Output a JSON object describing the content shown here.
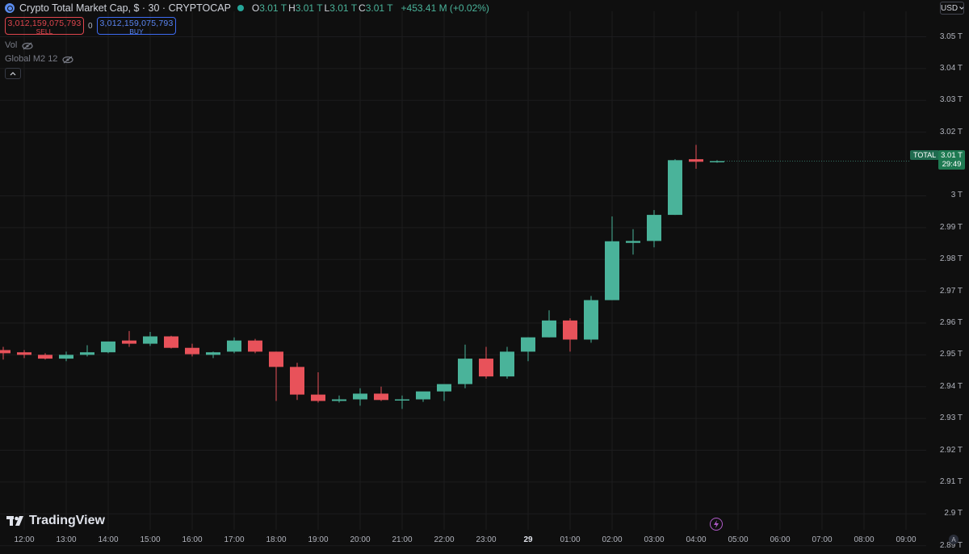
{
  "header": {
    "title": "Crypto Total Market Cap, $ · 30 · CRYPTOCAP",
    "ohlc": [
      {
        "key": "O",
        "value": "3.01 T"
      },
      {
        "key": "H",
        "value": "3.01 T"
      },
      {
        "key": "L",
        "value": "3.01 T"
      },
      {
        "key": "C",
        "value": "3.01 T"
      }
    ],
    "change": "+453.41 M (+0.02%)"
  },
  "trade": {
    "sell_price": "3,012,159,075,793",
    "sell_label": "SELL",
    "buy_price": "3,012,159,075,793",
    "buy_label": "BUY",
    "spread": "0"
  },
  "indicators": {
    "vol_label": "Vol",
    "m2_label": "Global M2 12"
  },
  "currency": "USD",
  "logo_text": "TradingView",
  "price_tag": {
    "symbol": "TOTAL",
    "price": "3.01 T",
    "countdown": "29:49"
  },
  "auto_label": "A",
  "colors": {
    "up": "#4ab39a",
    "down": "#e8525a",
    "background": "#0f0f0f"
  },
  "chart_data": {
    "type": "candlestick",
    "ylim": [
      2.895,
      3.058
    ],
    "y_ticks": [
      {
        "value": 3.05,
        "label": "3.05 T"
      },
      {
        "value": 3.04,
        "label": "3.04 T"
      },
      {
        "value": 3.03,
        "label": "3.03 T"
      },
      {
        "value": 3.02,
        "label": "3.02 T"
      },
      {
        "value": 3.0,
        "label": "3 T"
      },
      {
        "value": 2.99,
        "label": "2.99 T"
      },
      {
        "value": 2.98,
        "label": "2.98 T"
      },
      {
        "value": 2.97,
        "label": "2.97 T"
      },
      {
        "value": 2.96,
        "label": "2.96 T"
      },
      {
        "value": 2.95,
        "label": "2.95 T"
      },
      {
        "value": 2.94,
        "label": "2.94 T"
      },
      {
        "value": 2.93,
        "label": "2.93 T"
      },
      {
        "value": 2.92,
        "label": "2.92 T"
      },
      {
        "value": 2.91,
        "label": "2.91 T"
      },
      {
        "value": 2.9,
        "label": "2.9 T"
      },
      {
        "value": 2.89,
        "label": "2.89 T"
      }
    ],
    "x_ticks": [
      {
        "time": "12:00",
        "label": "12:00",
        "bold": false
      },
      {
        "time": "13:00",
        "label": "13:00",
        "bold": false
      },
      {
        "time": "14:00",
        "label": "14:00",
        "bold": false
      },
      {
        "time": "15:00",
        "label": "15:00",
        "bold": false
      },
      {
        "time": "16:00",
        "label": "16:00",
        "bold": false
      },
      {
        "time": "17:00",
        "label": "17:00",
        "bold": false
      },
      {
        "time": "18:00",
        "label": "18:00",
        "bold": false
      },
      {
        "time": "19:00",
        "label": "19:00",
        "bold": false
      },
      {
        "time": "20:00",
        "label": "20:00",
        "bold": false
      },
      {
        "time": "21:00",
        "label": "21:00",
        "bold": false
      },
      {
        "time": "22:00",
        "label": "22:00",
        "bold": false
      },
      {
        "time": "23:00",
        "label": "23:00",
        "bold": false
      },
      {
        "time": "29 00:00",
        "label": "29",
        "bold": true
      },
      {
        "time": "29 01:00",
        "label": "01:00",
        "bold": false
      },
      {
        "time": "29 02:00",
        "label": "02:00",
        "bold": false
      },
      {
        "time": "29 03:00",
        "label": "03:00",
        "bold": false
      },
      {
        "time": "29 04:00",
        "label": "04:00",
        "bold": false
      },
      {
        "time": "29 05:00",
        "label": "05:00",
        "bold": false
      },
      {
        "time": "29 06:00",
        "label": "06:00",
        "bold": false
      },
      {
        "time": "29 07:00",
        "label": "07:00",
        "bold": false
      },
      {
        "time": "29 08:00",
        "label": "08:00",
        "bold": false
      },
      {
        "time": "29 09:00",
        "label": "09:00",
        "bold": false
      }
    ],
    "candles": [
      {
        "time": "11:30",
        "o": 2.9515,
        "h": 2.9525,
        "l": 2.9485,
        "c": 2.9505
      },
      {
        "time": "12:00",
        "o": 2.9508,
        "h": 2.9515,
        "l": 2.949,
        "c": 2.95
      },
      {
        "time": "12:30",
        "o": 2.95,
        "h": 2.9505,
        "l": 2.9485,
        "c": 2.9488
      },
      {
        "time": "13:00",
        "o": 2.9488,
        "h": 2.951,
        "l": 2.948,
        "c": 2.95
      },
      {
        "time": "13:30",
        "o": 2.95,
        "h": 2.953,
        "l": 2.9495,
        "c": 2.9508
      },
      {
        "time": "14:00",
        "o": 2.9508,
        "h": 2.954,
        "l": 2.9505,
        "c": 2.9542
      },
      {
        "time": "14:30",
        "o": 2.9545,
        "h": 2.9575,
        "l": 2.9525,
        "c": 2.9535
      },
      {
        "time": "15:00",
        "o": 2.9535,
        "h": 2.9572,
        "l": 2.9528,
        "c": 2.9558
      },
      {
        "time": "15:30",
        "o": 2.9558,
        "h": 2.956,
        "l": 2.952,
        "c": 2.9522
      },
      {
        "time": "16:00",
        "o": 2.9522,
        "h": 2.9535,
        "l": 2.9495,
        "c": 2.9502
      },
      {
        "time": "16:30",
        "o": 2.95,
        "h": 2.951,
        "l": 2.949,
        "c": 2.9508
      },
      {
        "time": "17:00",
        "o": 2.951,
        "h": 2.9555,
        "l": 2.9505,
        "c": 2.9545
      },
      {
        "time": "17:30",
        "o": 2.9545,
        "h": 2.955,
        "l": 2.9505,
        "c": 2.951
      },
      {
        "time": "18:00",
        "o": 2.951,
        "h": 2.951,
        "l": 2.9355,
        "c": 2.9462
      },
      {
        "time": "18:30",
        "o": 2.9462,
        "h": 2.9475,
        "l": 2.9358,
        "c": 2.9375
      },
      {
        "time": "19:00",
        "o": 2.9375,
        "h": 2.9445,
        "l": 2.935,
        "c": 2.9355
      },
      {
        "time": "19:30",
        "o": 2.9355,
        "h": 2.9372,
        "l": 2.935,
        "c": 2.936
      },
      {
        "time": "20:00",
        "o": 2.936,
        "h": 2.9395,
        "l": 2.934,
        "c": 2.9378
      },
      {
        "time": "20:30",
        "o": 2.9378,
        "h": 2.94,
        "l": 2.9355,
        "c": 2.9358
      },
      {
        "time": "21:00",
        "o": 2.9358,
        "h": 2.9372,
        "l": 2.933,
        "c": 2.936
      },
      {
        "time": "21:30",
        "o": 2.936,
        "h": 2.938,
        "l": 2.9352,
        "c": 2.9385
      },
      {
        "time": "22:00",
        "o": 2.9385,
        "h": 2.94,
        "l": 2.9355,
        "c": 2.9408
      },
      {
        "time": "22:30",
        "o": 2.9408,
        "h": 2.9532,
        "l": 2.9395,
        "c": 2.9488
      },
      {
        "time": "23:00",
        "o": 2.9488,
        "h": 2.9525,
        "l": 2.9425,
        "c": 2.9432
      },
      {
        "time": "23:30",
        "o": 2.9432,
        "h": 2.9525,
        "l": 2.9425,
        "c": 2.951
      },
      {
        "time": "29 00:00",
        "o": 2.951,
        "h": 2.9555,
        "l": 2.948,
        "c": 2.9555
      },
      {
        "time": "29 00:30",
        "o": 2.9555,
        "h": 2.964,
        "l": 2.9555,
        "c": 2.9608
      },
      {
        "time": "29 01:00",
        "o": 2.9608,
        "h": 2.9615,
        "l": 2.951,
        "c": 2.9548
      },
      {
        "time": "29 01:30",
        "o": 2.9548,
        "h": 2.9685,
        "l": 2.9538,
        "c": 2.9672
      },
      {
        "time": "29 02:00",
        "o": 2.9672,
        "h": 2.9935,
        "l": 2.9672,
        "c": 2.9857
      },
      {
        "time": "29 02:30",
        "o": 2.9852,
        "h": 2.9895,
        "l": 2.9815,
        "c": 2.9858
      },
      {
        "time": "29 03:00",
        "o": 2.9858,
        "h": 2.9955,
        "l": 2.9838,
        "c": 2.994
      },
      {
        "time": "29 03:30",
        "o": 2.994,
        "h": 3.0115,
        "l": 2.994,
        "c": 3.0112
      },
      {
        "time": "29 04:00",
        "o": 3.0115,
        "h": 3.016,
        "l": 3.0085,
        "c": 3.0107
      },
      {
        "time": "29 04:30",
        "o": 3.0107,
        "h": 3.0112,
        "l": 3.0104,
        "c": 3.0109
      }
    ]
  }
}
